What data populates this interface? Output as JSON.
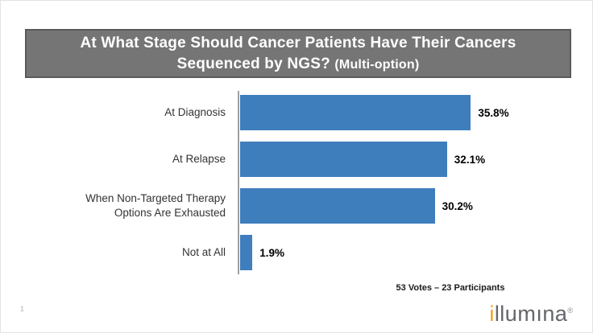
{
  "title": {
    "main": "At What Stage Should Cancer Patients Have Their Cancers Sequenced by NGS?",
    "suffix": "(Multi-option)"
  },
  "chart_data": {
    "type": "bar",
    "orientation": "horizontal",
    "categories": [
      "At Diagnosis",
      "At Relapse",
      "When Non-Targeted Therapy Options Are Exhausted",
      "Not at All"
    ],
    "values": [
      35.8,
      32.1,
      30.2,
      1.9
    ],
    "value_labels": [
      "35.8%",
      "32.1%",
      "30.2%",
      "1.9%"
    ],
    "title": "At What Stage Should Cancer Patients Have Their Cancers Sequenced by NGS? (Multi-option)",
    "xlabel": "",
    "ylabel": "",
    "xlim": [
      0,
      40
    ],
    "grid": false,
    "legend": null,
    "data_labels": "outside-end"
  },
  "footer": {
    "votes_note": "53 Votes – 23 Participants",
    "page_number": "1"
  },
  "logo": {
    "first_letter": "i",
    "rest": "llumına",
    "registered": "®"
  },
  "colors": {
    "bar_blue": "#3f7ebc",
    "title_bar_bg": "#767576",
    "title_bar_border": "#5a5a5a",
    "axis_gray": "#a0a0a0",
    "logo_orange": "#f6a01a",
    "logo_gray": "#63666a"
  }
}
